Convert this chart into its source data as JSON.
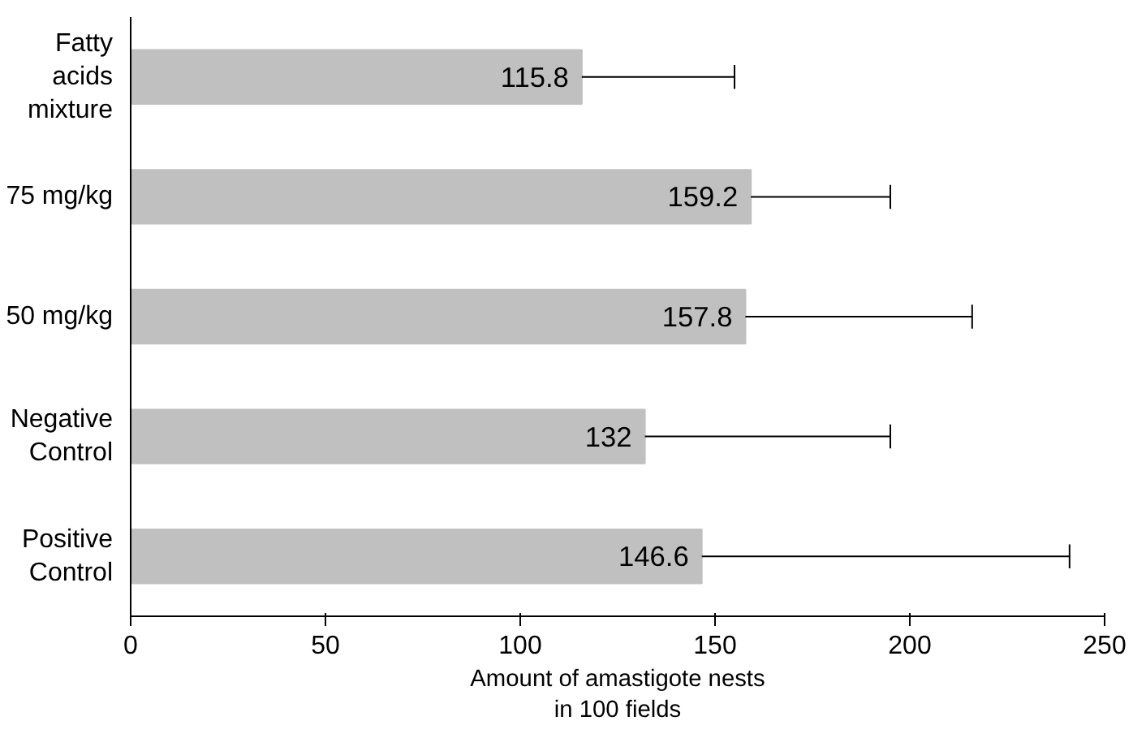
{
  "chart_data": {
    "type": "bar",
    "orientation": "horizontal",
    "xlabel": "Amount of amastigote nests in 100 fields",
    "categories": [
      "Fatty acids mixture",
      "75 mg/kg",
      "50 mg/kg",
      "Negative Control",
      "Positive Control"
    ],
    "values": [
      115.8,
      159.2,
      157.8,
      132,
      146.6
    ],
    "errors": [
      [
        115.8,
        155
      ],
      [
        159.2,
        195
      ],
      [
        157.8,
        216
      ],
      [
        132,
        195
      ],
      [
        146.6,
        241
      ]
    ],
    "color": "#c0c0c0",
    "data_labels": true,
    "xlim": [
      0,
      250
    ],
    "xticks": [
      0,
      50,
      100,
      150,
      200,
      250
    ],
    "grid": false
  }
}
